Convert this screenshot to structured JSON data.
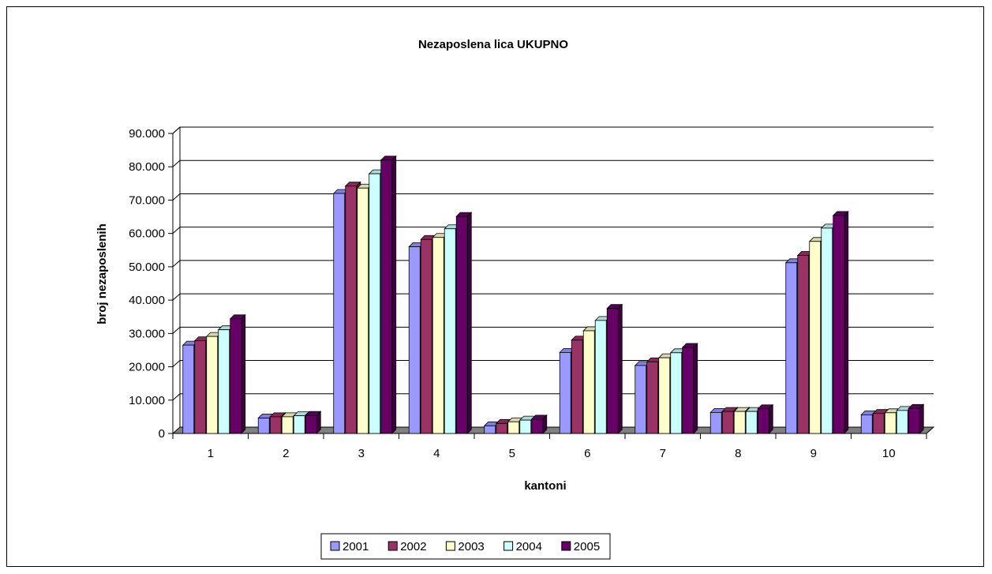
{
  "chart_data": {
    "type": "bar",
    "title": "Nezaposlena lica UKUPNO",
    "xlabel": "kantoni",
    "ylabel": "broj nezaposlenih",
    "categories": [
      "1",
      "2",
      "3",
      "4",
      "5",
      "6",
      "7",
      "8",
      "9",
      "10"
    ],
    "series": [
      {
        "name": "2001",
        "color": "#9999ff",
        "values": [
          26500,
          4600,
          72000,
          56000,
          2300,
          24300,
          20400,
          6300,
          51200,
          5600
        ]
      },
      {
        "name": "2002",
        "color": "#993366",
        "values": [
          27800,
          5000,
          74200,
          58200,
          3000,
          28000,
          21500,
          6600,
          53400,
          6000
        ]
      },
      {
        "name": "2003",
        "color": "#ffffcc",
        "values": [
          29100,
          5000,
          73600,
          58800,
          3500,
          30800,
          22700,
          6600,
          57600,
          6200
        ]
      },
      {
        "name": "2004",
        "color": "#ccffff",
        "values": [
          31100,
          5300,
          77900,
          61400,
          4000,
          33900,
          24200,
          6600,
          61600,
          6900
        ]
      },
      {
        "name": "2005",
        "color": "#660066",
        "values": [
          34400,
          5400,
          82000,
          65100,
          4300,
          37500,
          25800,
          7400,
          65400,
          7500
        ]
      }
    ],
    "ylim": [
      0,
      90000
    ],
    "yticks": [
      "0",
      "10.000",
      "20.000",
      "30.000",
      "40.000",
      "50.000",
      "60.000",
      "70.000",
      "80.000",
      "90.000"
    ],
    "grid": true,
    "legend_position": "bottom",
    "wall_color": "#ffffff",
    "floor_color": "#808080"
  }
}
